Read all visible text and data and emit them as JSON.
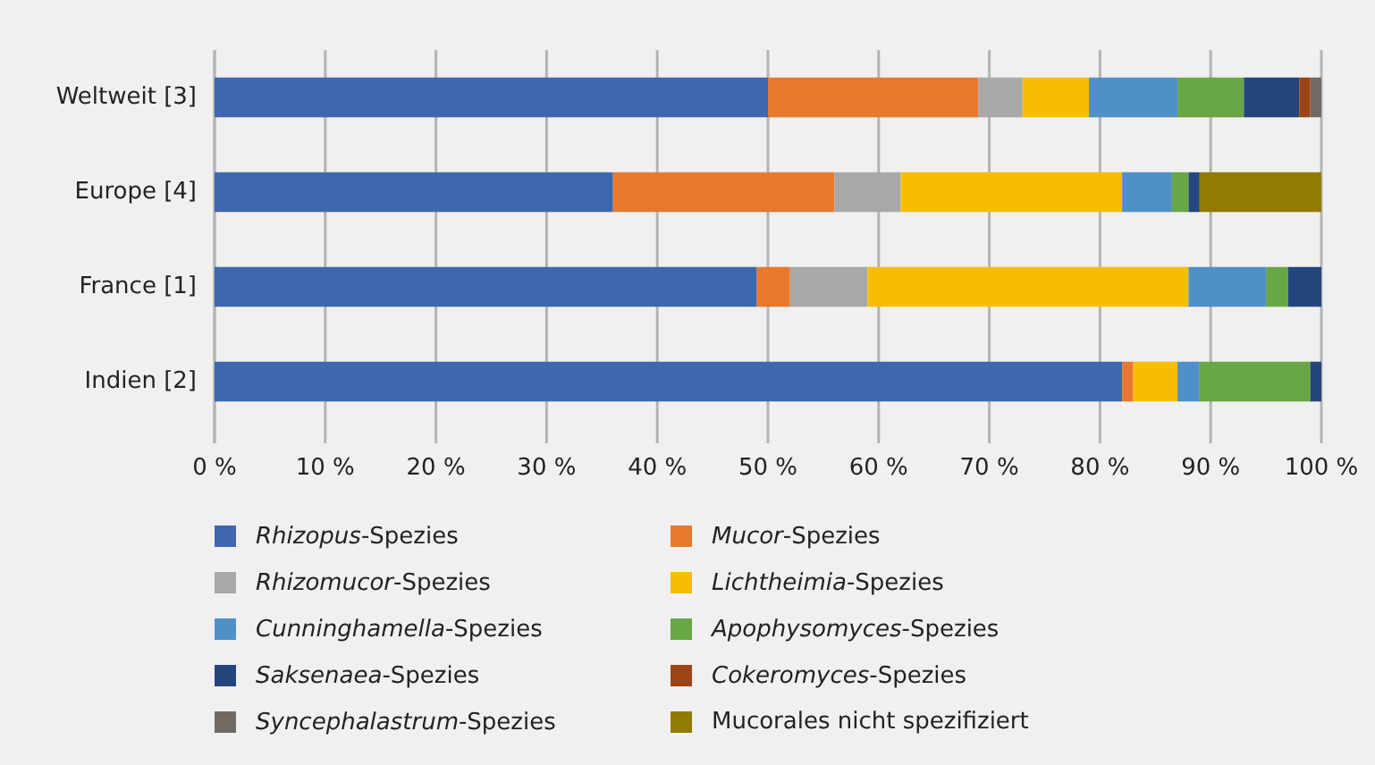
{
  "chart_data": {
    "type": "bar",
    "orientation": "horizontal",
    "stacked": true,
    "categories": [
      "Weltweit [3]",
      "Europe [4]",
      "France [1]",
      "Indien [2]"
    ],
    "series": [
      {
        "name": "Rhizopus-Spezies",
        "color": "#3f67ae",
        "values": [
          50,
          36,
          49,
          82
        ]
      },
      {
        "name": "Mucor-Spezies",
        "color": "#e9782f",
        "values": [
          19,
          20,
          3,
          1
        ]
      },
      {
        "name": "Rhizomucor-Spezies",
        "color": "#a8a8a8",
        "values": [
          4,
          6,
          7,
          0
        ]
      },
      {
        "name": "Lichtheimia-Spezies",
        "color": "#f7bd00",
        "values": [
          6,
          20,
          29,
          4
        ]
      },
      {
        "name": "Cunninghamella-Spezies",
        "color": "#5090c9",
        "values": [
          8,
          4.5,
          7,
          2
        ]
      },
      {
        "name": "Apophysomyces-Spezies",
        "color": "#69a745",
        "values": [
          6,
          1.5,
          2,
          10
        ]
      },
      {
        "name": "Saksenaea-Spezies",
        "color": "#23467e",
        "values": [
          5,
          1,
          3,
          1
        ]
      },
      {
        "name": "Cokeromyces-Spezies",
        "color": "#9c4416",
        "values": [
          1,
          0,
          0,
          0
        ]
      },
      {
        "name": "Syncephalastrum-Spezies",
        "color": "#716a64",
        "values": [
          1,
          0,
          0,
          0
        ]
      },
      {
        "name": "Mucorales nicht spezifiziert",
        "color": "#917b00",
        "values": [
          0,
          11,
          0,
          0
        ]
      }
    ],
    "xlim": [
      0,
      100
    ],
    "xticks": [
      {
        "value": 0,
        "label": "0 %"
      },
      {
        "value": 10,
        "label": "10 %"
      },
      {
        "value": 20,
        "label": "20 %"
      },
      {
        "value": 30,
        "label": "30 %"
      },
      {
        "value": 40,
        "label": "40 %"
      },
      {
        "value": 50,
        "label": "50 %"
      },
      {
        "value": 60,
        "label": "60 %"
      },
      {
        "value": 70,
        "label": "70 %"
      },
      {
        "value": 80,
        "label": "80 %"
      },
      {
        "value": 90,
        "label": "90 %"
      },
      {
        "value": 100,
        "label": "100 %"
      }
    ],
    "grid": "x",
    "legend": "bottom"
  }
}
